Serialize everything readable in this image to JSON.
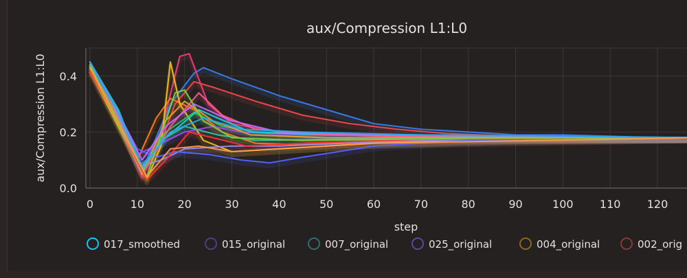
{
  "chart_data": {
    "type": "line",
    "title": "aux/Compression L1:L0",
    "xlabel": "step",
    "ylabel": "aux/Compression L1:L0",
    "xlim": [
      0,
      130
    ],
    "ylim": [
      0,
      0.5
    ],
    "x_ticks": [
      0,
      10,
      20,
      30,
      40,
      50,
      60,
      70,
      80,
      90,
      100,
      110,
      120
    ],
    "y_ticks": [
      0.0,
      0.2,
      0.4
    ],
    "x_tick_labels": [
      "0",
      "10",
      "20",
      "30",
      "40",
      "50",
      "60",
      "70",
      "80",
      "90",
      "100",
      "110",
      "120"
    ],
    "y_tick_labels": [
      "0.0",
      "0.2",
      "0.4"
    ],
    "grid": true,
    "legend_position": "bottom",
    "legend": [
      {
        "name": "017_smoothed",
        "color": "#19c3f2"
      },
      {
        "name": "015_original",
        "color": "#4b3f8c"
      },
      {
        "name": "007_original",
        "color": "#2f6f73"
      },
      {
        "name": "025_original",
        "color": "#5a48a0"
      },
      {
        "name": "004_original",
        "color": "#8a6a1a"
      },
      {
        "name": "002_orig",
        "color": "#8a3a34"
      }
    ],
    "series": [
      {
        "color": "#3b7ff0",
        "points": [
          [
            0,
            0.45
          ],
          [
            5,
            0.3
          ],
          [
            10,
            0.08
          ],
          [
            12,
            0.1
          ],
          [
            17,
            0.3
          ],
          [
            22,
            0.41
          ],
          [
            24,
            0.43
          ],
          [
            30,
            0.39
          ],
          [
            40,
            0.33
          ],
          [
            50,
            0.28
          ],
          [
            60,
            0.23
          ],
          [
            70,
            0.21
          ],
          [
            80,
            0.2
          ],
          [
            90,
            0.19
          ],
          [
            100,
            0.19
          ],
          [
            110,
            0.185
          ],
          [
            120,
            0.18
          ],
          [
            130,
            0.18
          ]
        ]
      },
      {
        "color": "#f24b4b",
        "points": [
          [
            0,
            0.44
          ],
          [
            5,
            0.28
          ],
          [
            11,
            0.05
          ],
          [
            14,
            0.12
          ],
          [
            18,
            0.3
          ],
          [
            22,
            0.38
          ],
          [
            26,
            0.36
          ],
          [
            35,
            0.31
          ],
          [
            45,
            0.26
          ],
          [
            55,
            0.23
          ],
          [
            65,
            0.21
          ],
          [
            75,
            0.195
          ],
          [
            90,
            0.185
          ],
          [
            110,
            0.18
          ],
          [
            130,
            0.18
          ]
        ]
      },
      {
        "color": "#e8407a",
        "points": [
          [
            0,
            0.43
          ],
          [
            6,
            0.25
          ],
          [
            11,
            0.04
          ],
          [
            15,
            0.2
          ],
          [
            19,
            0.47
          ],
          [
            21,
            0.48
          ],
          [
            25,
            0.3
          ],
          [
            30,
            0.23
          ],
          [
            40,
            0.2
          ],
          [
            60,
            0.185
          ],
          [
            90,
            0.18
          ],
          [
            130,
            0.18
          ]
        ]
      },
      {
        "color": "#ff7a1a",
        "points": [
          [
            0,
            0.44
          ],
          [
            5,
            0.28
          ],
          [
            10,
            0.1
          ],
          [
            14,
            0.25
          ],
          [
            17,
            0.32
          ],
          [
            22,
            0.28
          ],
          [
            28,
            0.2
          ],
          [
            35,
            0.16
          ],
          [
            45,
            0.155
          ],
          [
            60,
            0.165
          ],
          [
            80,
            0.175
          ],
          [
            130,
            0.18
          ]
        ]
      },
      {
        "color": "#f2c01b",
        "points": [
          [
            0,
            0.42
          ],
          [
            6,
            0.22
          ],
          [
            12,
            0.03
          ],
          [
            15,
            0.15
          ],
          [
            17,
            0.45
          ],
          [
            19,
            0.3
          ],
          [
            24,
            0.17
          ],
          [
            30,
            0.13
          ],
          [
            40,
            0.14
          ],
          [
            60,
            0.16
          ],
          [
            90,
            0.175
          ],
          [
            130,
            0.18
          ]
        ]
      },
      {
        "color": "#27c66a",
        "points": [
          [
            0,
            0.43
          ],
          [
            5,
            0.26
          ],
          [
            11,
            0.06
          ],
          [
            16,
            0.2
          ],
          [
            22,
            0.27
          ],
          [
            28,
            0.22
          ],
          [
            35,
            0.2
          ],
          [
            50,
            0.19
          ],
          [
            70,
            0.185
          ],
          [
            130,
            0.18
          ]
        ]
      },
      {
        "color": "#a24cf0",
        "points": [
          [
            0,
            0.44
          ],
          [
            5,
            0.3
          ],
          [
            10,
            0.12
          ],
          [
            15,
            0.16
          ],
          [
            20,
            0.2
          ],
          [
            26,
            0.22
          ],
          [
            32,
            0.2
          ],
          [
            45,
            0.19
          ],
          [
            70,
            0.185
          ],
          [
            130,
            0.18
          ]
        ]
      },
      {
        "color": "#1fd0d6",
        "points": [
          [
            0,
            0.45
          ],
          [
            6,
            0.28
          ],
          [
            11,
            0.07
          ],
          [
            16,
            0.18
          ],
          [
            23,
            0.28
          ],
          [
            27,
            0.25
          ],
          [
            34,
            0.2
          ],
          [
            50,
            0.19
          ],
          [
            80,
            0.185
          ],
          [
            130,
            0.18
          ]
        ]
      },
      {
        "color": "#9a8cf0",
        "points": [
          [
            0,
            0.45
          ],
          [
            5,
            0.29
          ],
          [
            11,
            0.08
          ],
          [
            15,
            0.1
          ],
          [
            20,
            0.14
          ],
          [
            30,
            0.15
          ],
          [
            40,
            0.15
          ],
          [
            60,
            0.165
          ],
          [
            90,
            0.175
          ],
          [
            130,
            0.18
          ]
        ]
      },
      {
        "color": "#ff5a8a",
        "points": [
          [
            0,
            0.43
          ],
          [
            5,
            0.27
          ],
          [
            11,
            0.05
          ],
          [
            17,
            0.22
          ],
          [
            23,
            0.34
          ],
          [
            28,
            0.26
          ],
          [
            35,
            0.21
          ],
          [
            50,
            0.19
          ],
          [
            80,
            0.18
          ],
          [
            130,
            0.18
          ]
        ]
      },
      {
        "color": "#5566ff",
        "points": [
          [
            0,
            0.44
          ],
          [
            5,
            0.3
          ],
          [
            10,
            0.14
          ],
          [
            14,
            0.11
          ],
          [
            18,
            0.13
          ],
          [
            25,
            0.12
          ],
          [
            32,
            0.1
          ],
          [
            38,
            0.09
          ],
          [
            45,
            0.11
          ],
          [
            60,
            0.15
          ],
          [
            80,
            0.17
          ],
          [
            130,
            0.18
          ]
        ]
      },
      {
        "color": "#e8a030",
        "points": [
          [
            0,
            0.43
          ],
          [
            6,
            0.24
          ],
          [
            11,
            0.05
          ],
          [
            16,
            0.24
          ],
          [
            20,
            0.31
          ],
          [
            26,
            0.24
          ],
          [
            34,
            0.19
          ],
          [
            50,
            0.18
          ],
          [
            130,
            0.18
          ]
        ]
      },
      {
        "color": "#3fbf9f",
        "points": [
          [
            0,
            0.44
          ],
          [
            5,
            0.27
          ],
          [
            11,
            0.06
          ],
          [
            15,
            0.17
          ],
          [
            20,
            0.22
          ],
          [
            27,
            0.19
          ],
          [
            35,
            0.17
          ],
          [
            55,
            0.175
          ],
          [
            130,
            0.18
          ]
        ]
      },
      {
        "color": "#ff3030",
        "points": [
          [
            0,
            0.42
          ],
          [
            7,
            0.2
          ],
          [
            12,
            0.03
          ],
          [
            16,
            0.1
          ],
          [
            21,
            0.2
          ],
          [
            26,
            0.18
          ],
          [
            33,
            0.15
          ],
          [
            45,
            0.16
          ],
          [
            70,
            0.175
          ],
          [
            130,
            0.18
          ]
        ]
      },
      {
        "color": "#7fd03f",
        "points": [
          [
            0,
            0.44
          ],
          [
            5,
            0.27
          ],
          [
            12,
            0.04
          ],
          [
            18,
            0.34
          ],
          [
            20,
            0.35
          ],
          [
            24,
            0.24
          ],
          [
            30,
            0.18
          ],
          [
            45,
            0.17
          ],
          [
            80,
            0.178
          ],
          [
            130,
            0.18
          ]
        ]
      },
      {
        "color": "#c070ff",
        "points": [
          [
            0,
            0.45
          ],
          [
            5,
            0.3
          ],
          [
            11,
            0.1
          ],
          [
            16,
            0.22
          ],
          [
            22,
            0.3
          ],
          [
            30,
            0.24
          ],
          [
            40,
            0.2
          ],
          [
            60,
            0.19
          ],
          [
            130,
            0.18
          ]
        ]
      },
      {
        "color": "#2aa8e8",
        "points": [
          [
            0,
            0.45
          ],
          [
            6,
            0.27
          ],
          [
            11,
            0.08
          ],
          [
            17,
            0.2
          ],
          [
            24,
            0.25
          ],
          [
            32,
            0.21
          ],
          [
            45,
            0.2
          ],
          [
            70,
            0.19
          ],
          [
            130,
            0.18
          ]
        ]
      },
      {
        "color": "#ff9a4a",
        "points": [
          [
            0,
            0.43
          ],
          [
            6,
            0.23
          ],
          [
            12,
            0.04
          ],
          [
            17,
            0.14
          ],
          [
            23,
            0.15
          ],
          [
            30,
            0.13
          ],
          [
            40,
            0.14
          ],
          [
            60,
            0.16
          ],
          [
            130,
            0.18
          ]
        ]
      }
    ]
  }
}
